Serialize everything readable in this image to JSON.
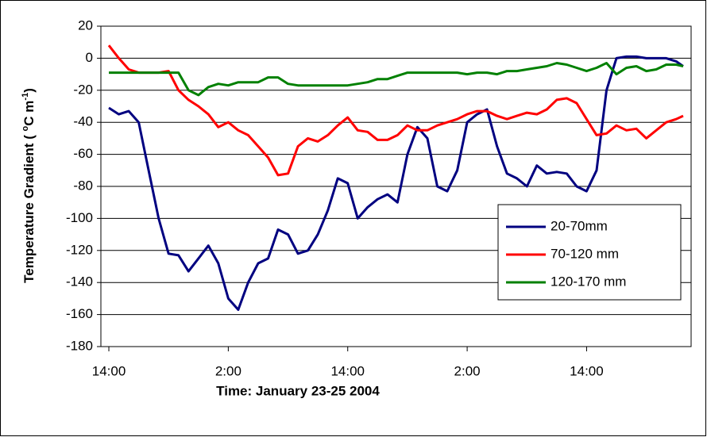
{
  "chart_data": {
    "type": "line",
    "y_label": "Temperature Gradient ( °C m-1)",
    "y_label_parts": [
      "Temperature Gradient ( ",
      "o",
      "C m",
      "-1",
      ")"
    ],
    "x_label": "Time: January 23-25 2004",
    "x": [
      0,
      1,
      2,
      3,
      4,
      5,
      6,
      7,
      8,
      9,
      10,
      11,
      12,
      13,
      14,
      15,
      16,
      17,
      18,
      19,
      20,
      21,
      22,
      23,
      24,
      25,
      26,
      27,
      28,
      29,
      30,
      31,
      32,
      33,
      34,
      35,
      36,
      37,
      38,
      39,
      40,
      41,
      42,
      43,
      44,
      45,
      46,
      47,
      48,
      49,
      50,
      51,
      52,
      53,
      54,
      55,
      56,
      57,
      57.7
    ],
    "xlim": [
      -0.8,
      58.5
    ],
    "xticks": [
      {
        "value": 0,
        "label": "14:00"
      },
      {
        "value": 12,
        "label": "2:00"
      },
      {
        "value": 24,
        "label": "14:00"
      },
      {
        "value": 36,
        "label": "2:00"
      },
      {
        "value": 48,
        "label": "14:00"
      }
    ],
    "ylim": [
      -180,
      20
    ],
    "yticks": [
      -180,
      -160,
      -140,
      -120,
      -100,
      -80,
      -60,
      -40,
      -20,
      0,
      20
    ],
    "grid": true,
    "legend": "right",
    "series": [
      {
        "name": "20-70mm",
        "color": "#000080",
        "values": [
          -31,
          -35,
          -33,
          -40,
          -70,
          -100,
          -122,
          -123,
          -133,
          -125,
          -117,
          -128,
          -150,
          -157,
          -140,
          -128,
          -125,
          -107,
          -110,
          -122,
          -120,
          -110,
          -95,
          -75,
          -78,
          -100,
          -93,
          -88,
          -85,
          -90,
          -60,
          -43,
          -50,
          -80,
          -83,
          -70,
          -40,
          -35,
          -32,
          -55,
          -72,
          -75,
          -80,
          -67,
          -72,
          -71,
          -72,
          -80,
          -83,
          -70,
          -20,
          0,
          1,
          1,
          0,
          0,
          0,
          -2,
          -5
        ]
      },
      {
        "name": "70-120 mm",
        "color": "#ff0000",
        "values": [
          8,
          0,
          -7,
          -9,
          -9,
          -9,
          -8,
          -20,
          -26,
          -30,
          -35,
          -43,
          -40,
          -45,
          -48,
          -55,
          -62,
          -73,
          -72,
          -55,
          -50,
          -52,
          -48,
          -42,
          -37,
          -45,
          -46,
          -51,
          -51,
          -48,
          -42,
          -45,
          -45,
          -42,
          -40,
          -38,
          -35,
          -33,
          -33,
          -36,
          -38,
          -36,
          -34,
          -35,
          -32,
          -26,
          -25,
          -28,
          -38,
          -48,
          -47,
          -42,
          -45,
          -44,
          -50,
          -45,
          -40,
          -38,
          -36
        ]
      },
      {
        "name": "120-170 mm",
        "color": "#008000",
        "values": [
          -9,
          -9,
          -9,
          -9,
          -9,
          -9,
          -9,
          -9,
          -20,
          -23,
          -18,
          -16,
          -17,
          -15,
          -15,
          -15,
          -12,
          -12,
          -16,
          -17,
          -17,
          -17,
          -17,
          -17,
          -17,
          -16,
          -15,
          -13,
          -13,
          -11,
          -9,
          -9,
          -9,
          -9,
          -9,
          -9,
          -10,
          -9,
          -9,
          -10,
          -8,
          -8,
          -7,
          -6,
          -5,
          -3,
          -4,
          -6,
          -8,
          -6,
          -3,
          -10,
          -6,
          -5,
          -8,
          -7,
          -4,
          -4,
          -5
        ]
      }
    ]
  }
}
